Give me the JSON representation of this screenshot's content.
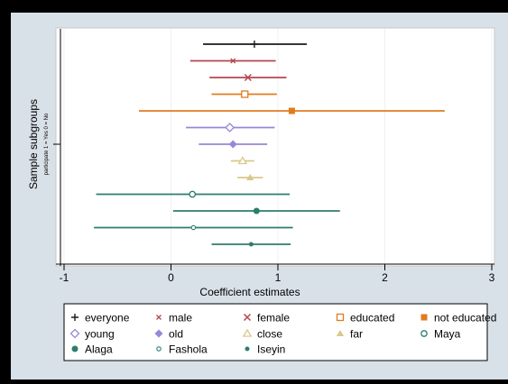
{
  "chart_data": {
    "type": "scatter",
    "subtype": "coefficient-plot-with-confidence-intervals",
    "xlabel": "Coefficient estimates",
    "ylabel": "Sample subgroups",
    "ylabel_note": "participate 1 = Yes 0 = No",
    "xlim": [
      -1,
      3
    ],
    "xticks": [
      -1,
      0,
      1,
      2,
      3
    ],
    "xtick_labels": [
      "-1",
      "0",
      "1",
      "2",
      "3"
    ],
    "grid": "vertical",
    "legend_position": "bottom",
    "legend_columns": 5,
    "series": [
      {
        "name": "everyone",
        "estimate": 0.78,
        "ci": [
          0.3,
          1.27
        ],
        "color": "#1a1a1a",
        "marker": "plus"
      },
      {
        "name": "male",
        "estimate": 0.58,
        "ci": [
          0.18,
          0.98
        ],
        "color": "#b3474e",
        "marker": "small-x"
      },
      {
        "name": "female",
        "estimate": 0.72,
        "ci": [
          0.36,
          1.08
        ],
        "color": "#b3474e",
        "marker": "x"
      },
      {
        "name": "educated",
        "estimate": 0.69,
        "ci": [
          0.38,
          0.99
        ],
        "color": "#e07b1f",
        "marker": "hollow-square"
      },
      {
        "name": "not educated",
        "estimate": 1.13,
        "ci": [
          -0.3,
          2.56
        ],
        "color": "#e07b1f",
        "marker": "square"
      },
      {
        "name": "young",
        "estimate": 0.55,
        "ci": [
          0.14,
          0.97
        ],
        "color": "#9a86d6",
        "marker": "hollow-diamond"
      },
      {
        "name": "old",
        "estimate": 0.58,
        "ci": [
          0.26,
          0.9
        ],
        "color": "#9a86d6",
        "marker": "diamond"
      },
      {
        "name": "close",
        "estimate": 0.67,
        "ci": [
          0.56,
          0.78
        ],
        "color": "#d9c98a",
        "marker": "hollow-triangle"
      },
      {
        "name": "far",
        "estimate": 0.74,
        "ci": [
          0.62,
          0.86
        ],
        "color": "#d9c98a",
        "marker": "triangle"
      },
      {
        "name": "Maya",
        "estimate": 0.2,
        "ci": [
          -0.7,
          1.11
        ],
        "color": "#2e7d6b",
        "marker": "hollow-circle"
      },
      {
        "name": "Alaga",
        "estimate": 0.8,
        "ci": [
          0.02,
          1.58
        ],
        "color": "#2e7d6b",
        "marker": "circle"
      },
      {
        "name": "Fashola",
        "estimate": 0.21,
        "ci": [
          -0.72,
          1.14
        ],
        "color": "#2e7d6b",
        "marker": "small-hollow-circle"
      },
      {
        "name": "Iseyin",
        "estimate": 0.75,
        "ci": [
          0.38,
          1.12
        ],
        "color": "#2e7d6b",
        "marker": "small-circle"
      }
    ]
  }
}
